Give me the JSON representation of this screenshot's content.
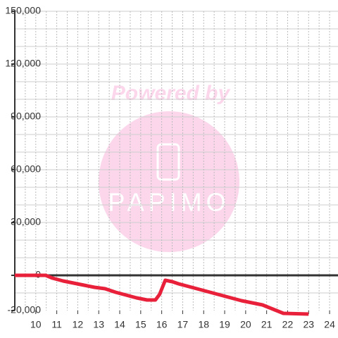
{
  "chart_data": {
    "type": "line",
    "watermark": {
      "line1": "Powered by",
      "line2": "PAPIMO"
    },
    "x": [
      9.0,
      10.47,
      10.8,
      11.3,
      11.8,
      12.3,
      12.8,
      13.3,
      13.8,
      14.3,
      14.8,
      15.3,
      15.7,
      15.9,
      16.17,
      16.5,
      16.8,
      17.3,
      17.8,
      18.3,
      18.8,
      19.3,
      19.8,
      20.3,
      20.8,
      21.3,
      21.8,
      23.0
    ],
    "series": [
      {
        "color": "#e8203a",
        "values": [
          0,
          0,
          -1600,
          -3200,
          -4400,
          -5600,
          -6800,
          -7600,
          -9600,
          -11200,
          -12800,
          -14000,
          -14000,
          -10800,
          -2800,
          -3600,
          -4800,
          -6400,
          -8000,
          -9600,
          -11200,
          -12800,
          -14400,
          -15600,
          -16800,
          -19200,
          -21600,
          -22000
        ]
      }
    ],
    "xlim": [
      9,
      24.4
    ],
    "xticks": [
      10,
      11,
      12,
      13,
      14,
      15,
      16,
      17,
      18,
      19,
      20,
      21,
      22,
      23,
      24
    ],
    "x_grid": [
      9.5,
      10,
      10.5,
      11,
      11.5,
      12,
      12.5,
      13,
      13.5,
      14,
      14.5,
      15,
      15.5,
      16,
      16.5,
      17,
      17.5,
      18,
      18.5,
      19,
      19.5,
      20,
      20.5,
      21,
      21.5,
      22,
      22.5,
      23,
      23.5,
      24
    ],
    "ylim": [
      -20000,
      150000
    ],
    "yticks": [
      {
        "value": -20000,
        "label": "-20,000"
      },
      0,
      {
        "value": 30000,
        "label": "30,000"
      },
      {
        "value": 60000,
        "label": "60,000"
      },
      {
        "value": 90000,
        "label": "90,000"
      },
      {
        "value": 120000,
        "label": "120,000"
      },
      {
        "value": 150000,
        "label": "150,000"
      }
    ],
    "y_grid": [
      -10000,
      10000,
      20000,
      30000,
      40000,
      50000,
      60000,
      70000,
      80000,
      90000,
      100000,
      110000,
      120000,
      130000,
      140000,
      150000
    ],
    "grid": true
  }
}
